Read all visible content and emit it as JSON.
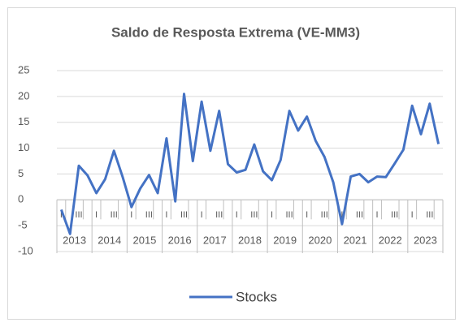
{
  "chart_data": {
    "type": "line",
    "title": "Saldo de Resposta Extrema (VE-MM3)",
    "categories": [
      "I",
      null,
      "III",
      null,
      "I",
      null,
      "III",
      null,
      "I",
      null,
      "III",
      null,
      "I",
      null,
      "III",
      null,
      "I",
      null,
      "III",
      null,
      "I",
      null,
      "III",
      null,
      "I",
      null,
      "III",
      null,
      "I",
      null,
      "III",
      null,
      "I",
      null,
      "III",
      null,
      "I",
      null,
      "III",
      null,
      "I",
      null,
      "III",
      null
    ],
    "year_groups": [
      "2013",
      "2014",
      "2015",
      "2016",
      "2017",
      "2018",
      "2019",
      "2020",
      "2021",
      "2022",
      "2023"
    ],
    "series": [
      {
        "name": "Stocks",
        "color": "#4472c4",
        "values": [
          -1.9,
          -6.6,
          6.6,
          4.7,
          1.3,
          4,
          9.5,
          4.4,
          -1.4,
          2.2,
          4.8,
          1.3,
          11.9,
          -0.3,
          20.5,
          7.5,
          19,
          9.5,
          17.2,
          6.9,
          5.3,
          5.8,
          10.7,
          5.5,
          3.8,
          7.7,
          17.2,
          13.4,
          16.1,
          11.4,
          8.3,
          3.4,
          -4.7,
          4.5,
          5,
          3.4,
          4.5,
          4.4,
          7,
          9.7,
          18.2,
          12.7,
          18.6,
          10.8
        ]
      }
    ],
    "ylim": [
      -10,
      25
    ],
    "yticks": [
      -10,
      -5,
      0,
      5,
      10,
      15,
      20,
      25
    ],
    "grid": true,
    "legend": "bottom"
  }
}
